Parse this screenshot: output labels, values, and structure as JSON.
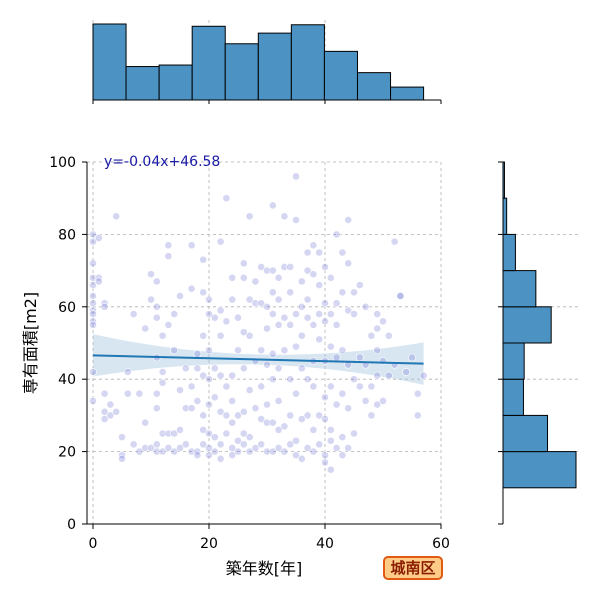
{
  "badge": {
    "label": "城南区"
  },
  "chart_data": {
    "type": "scatter",
    "title": "",
    "xlabel": "築年数[年]",
    "ylabel": "専有面積[m2]",
    "xlim": [
      -1,
      60
    ],
    "ylim": [
      0,
      100
    ],
    "xticks": [
      0,
      20,
      40,
      60
    ],
    "yticks": [
      0,
      20,
      40,
      60,
      80,
      100
    ],
    "grid": true,
    "regression": {
      "equation": "y=-0.04x+46.58",
      "slope": -0.04,
      "intercept": 46.58,
      "x_range": [
        0,
        57
      ]
    },
    "colors": {
      "points": "#7b7fd6",
      "bars": "#4c92c3",
      "regression": "#1f77b4",
      "equation": "#1a1aa6"
    },
    "marginal_x_hist": {
      "bins": [
        0,
        5.7,
        11.4,
        17.1,
        22.8,
        28.5,
        34.2,
        39.9,
        45.6,
        51.3,
        57
      ],
      "heights": [
        100,
        44,
        46,
        97,
        74,
        88,
        99,
        64,
        36,
        17
      ]
    },
    "marginal_y_hist": {
      "bins": [
        10,
        20,
        30,
        40,
        50,
        60,
        70,
        80,
        90,
        100
      ],
      "widths": [
        100,
        61,
        28,
        29,
        66,
        45,
        17,
        5,
        2
      ]
    },
    "points": [
      {
        "x": 0,
        "y": 80
      },
      {
        "x": 0,
        "y": 78
      },
      {
        "x": 0,
        "y": 72
      },
      {
        "x": 0,
        "y": 68
      },
      {
        "x": 0,
        "y": 66
      },
      {
        "x": 0,
        "y": 63
      },
      {
        "x": 0,
        "y": 61
      },
      {
        "x": 0,
        "y": 59
      },
      {
        "x": 0,
        "y": 58
      },
      {
        "x": 0,
        "y": 56
      },
      {
        "x": 0,
        "y": 55
      },
      {
        "x": 0,
        "y": 42
      },
      {
        "x": 0,
        "y": 34
      },
      {
        "x": 1,
        "y": 79
      },
      {
        "x": 1,
        "y": 68
      },
      {
        "x": 1,
        "y": 67
      },
      {
        "x": 2,
        "y": 61
      },
      {
        "x": 2,
        "y": 60
      },
      {
        "x": 2,
        "y": 36
      },
      {
        "x": 2,
        "y": 31
      },
      {
        "x": 2,
        "y": 29
      },
      {
        "x": 3,
        "y": 33
      },
      {
        "x": 3,
        "y": 30
      },
      {
        "x": 4,
        "y": 85
      },
      {
        "x": 4,
        "y": 31
      },
      {
        "x": 5,
        "y": 24
      },
      {
        "x": 5,
        "y": 19
      },
      {
        "x": 5,
        "y": 18
      },
      {
        "x": 6,
        "y": 42
      },
      {
        "x": 6,
        "y": 36
      },
      {
        "x": 7,
        "y": 58
      },
      {
        "x": 7,
        "y": 22
      },
      {
        "x": 8,
        "y": 36
      },
      {
        "x": 8,
        "y": 20
      },
      {
        "x": 9,
        "y": 54
      },
      {
        "x": 9,
        "y": 28
      },
      {
        "x": 9,
        "y": 21
      },
      {
        "x": 10,
        "y": 69
      },
      {
        "x": 10,
        "y": 62
      },
      {
        "x": 10,
        "y": 21
      },
      {
        "x": 11,
        "y": 67
      },
      {
        "x": 11,
        "y": 60
      },
      {
        "x": 11,
        "y": 57
      },
      {
        "x": 11,
        "y": 46
      },
      {
        "x": 11,
        "y": 36
      },
      {
        "x": 11,
        "y": 32
      },
      {
        "x": 11,
        "y": 22
      },
      {
        "x": 11,
        "y": 20
      },
      {
        "x": 12,
        "y": 52
      },
      {
        "x": 12,
        "y": 42
      },
      {
        "x": 12,
        "y": 39
      },
      {
        "x": 12,
        "y": 25
      },
      {
        "x": 12,
        "y": 20
      },
      {
        "x": 13,
        "y": 77
      },
      {
        "x": 13,
        "y": 74
      },
      {
        "x": 13,
        "y": 55
      },
      {
        "x": 13,
        "y": 25
      },
      {
        "x": 13,
        "y": 21
      },
      {
        "x": 14,
        "y": 58
      },
      {
        "x": 14,
        "y": 48
      },
      {
        "x": 14,
        "y": 25
      },
      {
        "x": 14,
        "y": 20
      },
      {
        "x": 15,
        "y": 63
      },
      {
        "x": 15,
        "y": 37
      },
      {
        "x": 15,
        "y": 26
      },
      {
        "x": 15,
        "y": 21
      },
      {
        "x": 16,
        "y": 43
      },
      {
        "x": 16,
        "y": 32
      },
      {
        "x": 16,
        "y": 22
      },
      {
        "x": 17,
        "y": 77
      },
      {
        "x": 17,
        "y": 65
      },
      {
        "x": 17,
        "y": 38
      },
      {
        "x": 17,
        "y": 32
      },
      {
        "x": 17,
        "y": 20
      },
      {
        "x": 18,
        "y": 47
      },
      {
        "x": 18,
        "y": 43
      },
      {
        "x": 18,
        "y": 34
      },
      {
        "x": 18,
        "y": 20
      },
      {
        "x": 18,
        "y": 19
      },
      {
        "x": 19,
        "y": 73
      },
      {
        "x": 19,
        "y": 64
      },
      {
        "x": 19,
        "y": 52
      },
      {
        "x": 19,
        "y": 41
      },
      {
        "x": 19,
        "y": 30
      },
      {
        "x": 19,
        "y": 26
      },
      {
        "x": 19,
        "y": 22
      },
      {
        "x": 20,
        "y": 62
      },
      {
        "x": 20,
        "y": 58
      },
      {
        "x": 20,
        "y": 48
      },
      {
        "x": 20,
        "y": 40
      },
      {
        "x": 20,
        "y": 33
      },
      {
        "x": 20,
        "y": 25
      },
      {
        "x": 20,
        "y": 21
      },
      {
        "x": 20,
        "y": 19
      },
      {
        "x": 21,
        "y": 57
      },
      {
        "x": 21,
        "y": 43
      },
      {
        "x": 21,
        "y": 35
      },
      {
        "x": 21,
        "y": 24
      },
      {
        "x": 21,
        "y": 20
      },
      {
        "x": 22,
        "y": 78
      },
      {
        "x": 22,
        "y": 59
      },
      {
        "x": 22,
        "y": 52
      },
      {
        "x": 22,
        "y": 41
      },
      {
        "x": 22,
        "y": 31
      },
      {
        "x": 22,
        "y": 22
      },
      {
        "x": 22,
        "y": 18
      },
      {
        "x": 23,
        "y": 90
      },
      {
        "x": 23,
        "y": 56
      },
      {
        "x": 23,
        "y": 38
      },
      {
        "x": 23,
        "y": 30
      },
      {
        "x": 23,
        "y": 25
      },
      {
        "x": 24,
        "y": 68
      },
      {
        "x": 24,
        "y": 62
      },
      {
        "x": 24,
        "y": 41
      },
      {
        "x": 24,
        "y": 34
      },
      {
        "x": 24,
        "y": 28
      },
      {
        "x": 24,
        "y": 21
      },
      {
        "x": 24,
        "y": 19
      },
      {
        "x": 25,
        "y": 57
      },
      {
        "x": 25,
        "y": 48
      },
      {
        "x": 25,
        "y": 30
      },
      {
        "x": 25,
        "y": 23
      },
      {
        "x": 25,
        "y": 20
      },
      {
        "x": 26,
        "y": 72
      },
      {
        "x": 26,
        "y": 68
      },
      {
        "x": 26,
        "y": 53
      },
      {
        "x": 26,
        "y": 43
      },
      {
        "x": 26,
        "y": 31
      },
      {
        "x": 26,
        "y": 25
      },
      {
        "x": 26,
        "y": 22
      },
      {
        "x": 27,
        "y": 85
      },
      {
        "x": 27,
        "y": 62
      },
      {
        "x": 27,
        "y": 52
      },
      {
        "x": 27,
        "y": 37
      },
      {
        "x": 27,
        "y": 24
      },
      {
        "x": 27,
        "y": 20
      },
      {
        "x": 28,
        "y": 67
      },
      {
        "x": 28,
        "y": 61
      },
      {
        "x": 28,
        "y": 45
      },
      {
        "x": 28,
        "y": 32
      },
      {
        "x": 28,
        "y": 21
      },
      {
        "x": 29,
        "y": 71
      },
      {
        "x": 29,
        "y": 61
      },
      {
        "x": 29,
        "y": 48
      },
      {
        "x": 29,
        "y": 38
      },
      {
        "x": 29,
        "y": 29
      },
      {
        "x": 29,
        "y": 22
      },
      {
        "x": 30,
        "y": 70
      },
      {
        "x": 30,
        "y": 60
      },
      {
        "x": 30,
        "y": 54
      },
      {
        "x": 30,
        "y": 44
      },
      {
        "x": 30,
        "y": 33
      },
      {
        "x": 30,
        "y": 28
      },
      {
        "x": 30,
        "y": 20
      },
      {
        "x": 31,
        "y": 88
      },
      {
        "x": 31,
        "y": 70
      },
      {
        "x": 31,
        "y": 64
      },
      {
        "x": 31,
        "y": 58
      },
      {
        "x": 31,
        "y": 47
      },
      {
        "x": 31,
        "y": 40
      },
      {
        "x": 31,
        "y": 28
      },
      {
        "x": 31,
        "y": 20
      },
      {
        "x": 32,
        "y": 68
      },
      {
        "x": 32,
        "y": 62
      },
      {
        "x": 32,
        "y": 55
      },
      {
        "x": 32,
        "y": 43
      },
      {
        "x": 32,
        "y": 34
      },
      {
        "x": 32,
        "y": 26
      },
      {
        "x": 32,
        "y": 21
      },
      {
        "x": 33,
        "y": 85
      },
      {
        "x": 33,
        "y": 71
      },
      {
        "x": 33,
        "y": 57
      },
      {
        "x": 33,
        "y": 48
      },
      {
        "x": 33,
        "y": 27
      },
      {
        "x": 33,
        "y": 20
      },
      {
        "x": 34,
        "y": 71
      },
      {
        "x": 34,
        "y": 64
      },
      {
        "x": 34,
        "y": 55
      },
      {
        "x": 34,
        "y": 40
      },
      {
        "x": 34,
        "y": 30
      },
      {
        "x": 34,
        "y": 22
      },
      {
        "x": 35,
        "y": 96
      },
      {
        "x": 35,
        "y": 84
      },
      {
        "x": 35,
        "y": 58
      },
      {
        "x": 35,
        "y": 49
      },
      {
        "x": 35,
        "y": 36
      },
      {
        "x": 35,
        "y": 23
      },
      {
        "x": 35,
        "y": 19
      },
      {
        "x": 36,
        "y": 67
      },
      {
        "x": 36,
        "y": 60
      },
      {
        "x": 36,
        "y": 52
      },
      {
        "x": 36,
        "y": 43
      },
      {
        "x": 36,
        "y": 29
      },
      {
        "x": 36,
        "y": 18
      },
      {
        "x": 37,
        "y": 75
      },
      {
        "x": 37,
        "y": 70
      },
      {
        "x": 37,
        "y": 62
      },
      {
        "x": 37,
        "y": 57
      },
      {
        "x": 37,
        "y": 40
      },
      {
        "x": 37,
        "y": 30
      },
      {
        "x": 37,
        "y": 21
      },
      {
        "x": 38,
        "y": 77
      },
      {
        "x": 38,
        "y": 69
      },
      {
        "x": 38,
        "y": 55
      },
      {
        "x": 38,
        "y": 45
      },
      {
        "x": 38,
        "y": 38
      },
      {
        "x": 38,
        "y": 26
      },
      {
        "x": 38,
        "y": 20
      },
      {
        "x": 39,
        "y": 75
      },
      {
        "x": 39,
        "y": 66
      },
      {
        "x": 39,
        "y": 58
      },
      {
        "x": 39,
        "y": 51
      },
      {
        "x": 39,
        "y": 30
      },
      {
        "x": 39,
        "y": 22
      },
      {
        "x": 40,
        "y": 71
      },
      {
        "x": 40,
        "y": 61
      },
      {
        "x": 40,
        "y": 56
      },
      {
        "x": 40,
        "y": 45
      },
      {
        "x": 40,
        "y": 35
      },
      {
        "x": 40,
        "y": 29
      },
      {
        "x": 40,
        "y": 19
      },
      {
        "x": 40,
        "y": 17
      },
      {
        "x": 41,
        "y": 68
      },
      {
        "x": 41,
        "y": 58
      },
      {
        "x": 41,
        "y": 49
      },
      {
        "x": 41,
        "y": 38
      },
      {
        "x": 41,
        "y": 26
      },
      {
        "x": 41,
        "y": 23
      },
      {
        "x": 41,
        "y": 15
      },
      {
        "x": 42,
        "y": 80
      },
      {
        "x": 42,
        "y": 61
      },
      {
        "x": 42,
        "y": 55
      },
      {
        "x": 42,
        "y": 46
      },
      {
        "x": 42,
        "y": 33
      },
      {
        "x": 42,
        "y": 21
      },
      {
        "x": 43,
        "y": 75
      },
      {
        "x": 43,
        "y": 64
      },
      {
        "x": 43,
        "y": 48
      },
      {
        "x": 43,
        "y": 36
      },
      {
        "x": 43,
        "y": 24
      },
      {
        "x": 43,
        "y": 19
      },
      {
        "x": 44,
        "y": 84
      },
      {
        "x": 44,
        "y": 72
      },
      {
        "x": 44,
        "y": 59
      },
      {
        "x": 44,
        "y": 44
      },
      {
        "x": 44,
        "y": 32
      },
      {
        "x": 44,
        "y": 21
      },
      {
        "x": 45,
        "y": 64
      },
      {
        "x": 45,
        "y": 58
      },
      {
        "x": 45,
        "y": 40
      },
      {
        "x": 45,
        "y": 25
      },
      {
        "x": 46,
        "y": 66
      },
      {
        "x": 46,
        "y": 46
      },
      {
        "x": 46,
        "y": 38
      },
      {
        "x": 47,
        "y": 60
      },
      {
        "x": 47,
        "y": 44
      },
      {
        "x": 47,
        "y": 34
      },
      {
        "x": 48,
        "y": 52
      },
      {
        "x": 48,
        "y": 38
      },
      {
        "x": 48,
        "y": 30
      },
      {
        "x": 49,
        "y": 58
      },
      {
        "x": 49,
        "y": 54
      },
      {
        "x": 49,
        "y": 48
      },
      {
        "x": 49,
        "y": 41
      },
      {
        "x": 49,
        "y": 33
      },
      {
        "x": 50,
        "y": 56
      },
      {
        "x": 50,
        "y": 45
      },
      {
        "x": 50,
        "y": 34
      },
      {
        "x": 51,
        "y": 52
      },
      {
        "x": 51,
        "y": 41
      },
      {
        "x": 52,
        "y": 78
      },
      {
        "x": 52,
        "y": 44
      },
      {
        "x": 53,
        "y": 63
      },
      {
        "x": 53,
        "y": 63
      },
      {
        "x": 54,
        "y": 42
      },
      {
        "x": 55,
        "y": 46
      },
      {
        "x": 56,
        "y": 36
      },
      {
        "x": 56,
        "y": 30
      },
      {
        "x": 57,
        "y": 41
      }
    ]
  }
}
